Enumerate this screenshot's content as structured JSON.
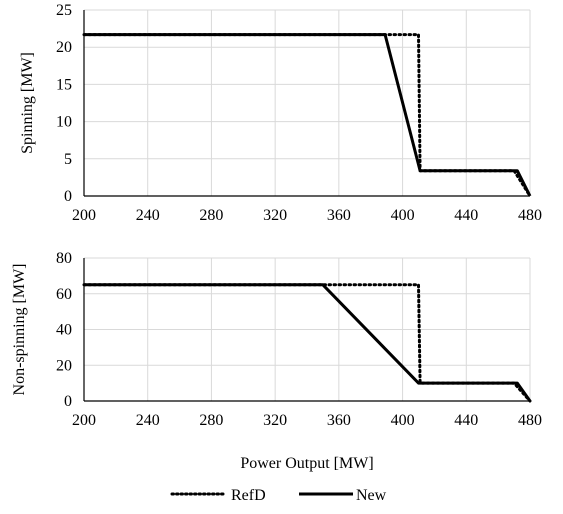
{
  "chart_data": [
    {
      "type": "line",
      "title": "",
      "xlabel": "",
      "ylabel": "Spinning [MW]",
      "xlim": [
        200,
        480
      ],
      "ylim": [
        0,
        25
      ],
      "xticks": [
        "200",
        "240",
        "280",
        "320",
        "360",
        "400",
        "440",
        "480"
      ],
      "yticks": [
        "0",
        "5",
        "10",
        "15",
        "20",
        "25"
      ],
      "grid": true,
      "series": [
        {
          "name": "RefD",
          "style": "dotted",
          "color": "#000000",
          "x": [
            200,
            410,
            411,
            470,
            480
          ],
          "y": [
            21.7,
            21.7,
            3.4,
            3.4,
            0
          ]
        },
        {
          "name": "New",
          "style": "solid",
          "color": "#000000",
          "x": [
            200,
            389,
            411,
            472,
            480
          ],
          "y": [
            21.7,
            21.7,
            3.4,
            3.4,
            0
          ]
        }
      ]
    },
    {
      "type": "line",
      "title": "",
      "xlabel": "Power Output [MW]",
      "ylabel": "Non-spinning [MW]",
      "xlim": [
        200,
        480
      ],
      "ylim": [
        0,
        80
      ],
      "xticks": [
        "200",
        "240",
        "280",
        "320",
        "360",
        "400",
        "440",
        "480"
      ],
      "yticks": [
        "0",
        "20",
        "40",
        "60",
        "80"
      ],
      "grid": true,
      "series": [
        {
          "name": "RefD",
          "style": "dotted",
          "color": "#000000",
          "x": [
            200,
            410,
            411,
            470,
            480
          ],
          "y": [
            65,
            65,
            10,
            10,
            0
          ]
        },
        {
          "name": "New",
          "style": "solid",
          "color": "#000000",
          "x": [
            200,
            350,
            410,
            472,
            480
          ],
          "y": [
            65,
            65,
            10,
            10,
            0
          ]
        }
      ]
    }
  ],
  "legend": {
    "placement": "bottom-center",
    "items": [
      {
        "label": "RefD",
        "style": "dotted"
      },
      {
        "label": "New",
        "style": "solid"
      }
    ]
  },
  "colors": {
    "grid": "#d9d9d9",
    "axis": "#000000",
    "series": "#000000"
  }
}
